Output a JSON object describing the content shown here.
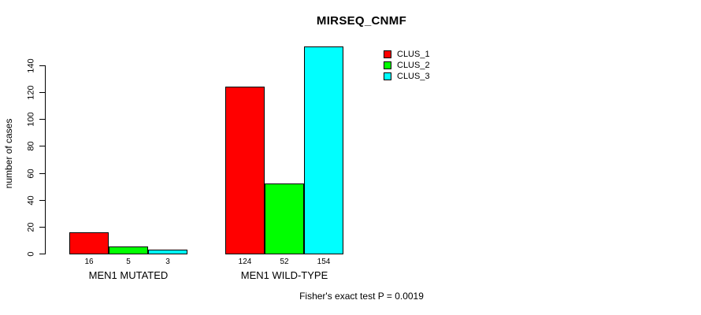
{
  "chart_data": {
    "type": "bar",
    "title": "MIRSEQ_CNMF",
    "ylabel": "number of cases",
    "xlabel": "",
    "categories": [
      "MEN1 MUTATED",
      "MEN1 WILD-TYPE"
    ],
    "series": [
      {
        "name": "CLUS_1",
        "color": "#FF0000",
        "values": [
          16,
          124
        ]
      },
      {
        "name": "CLUS_2",
        "color": "#00FF00",
        "values": [
          5,
          52
        ]
      },
      {
        "name": "CLUS_3",
        "color": "#00FFFF",
        "values": [
          3,
          154
        ]
      }
    ],
    "yticks": [
      0,
      20,
      40,
      60,
      80,
      100,
      120,
      140
    ],
    "ylim": [
      0,
      154
    ],
    "grid": false,
    "legend_position": "top-right",
    "annotation": "Fisher's exact test P = 0.0019"
  }
}
